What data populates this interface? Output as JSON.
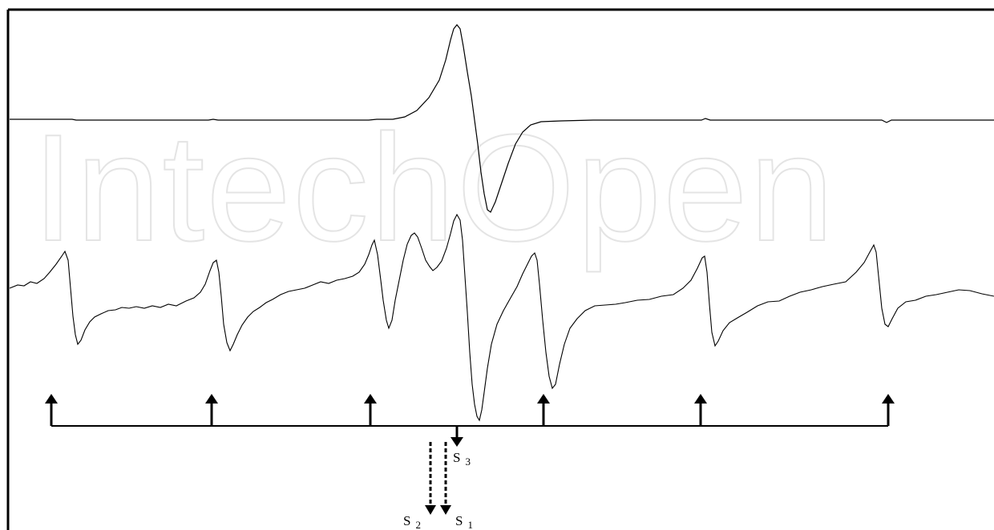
{
  "watermark": "IntechOpen",
  "labels": {
    "s3": {
      "main": "S",
      "sub": "3"
    },
    "s2": {
      "main": "S",
      "sub": "2"
    },
    "s1": {
      "main": "S",
      "sub": "1"
    }
  },
  "colors": {
    "line": "#000000",
    "watermark": "#e4e4e4",
    "background": "#ffffff"
  }
}
